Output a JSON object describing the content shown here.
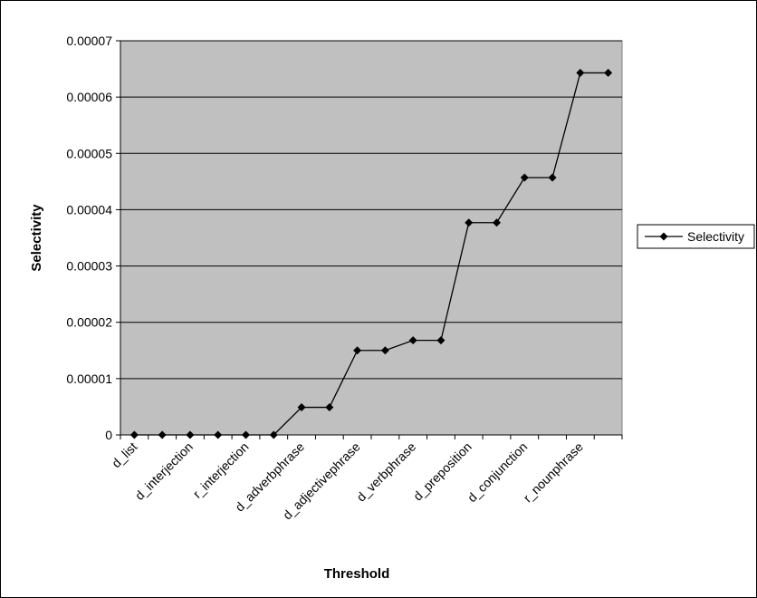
{
  "chart_data": {
    "type": "line",
    "title": "",
    "xlabel": "Threshold",
    "ylabel": "Selectivity",
    "ylim": [
      0,
      7e-05
    ],
    "grid": true,
    "legend_placement": "right",
    "yticks": [
      "0",
      "0.00001",
      "0.00002",
      "0.00003",
      "0.00004",
      "0.00005",
      "0.00006",
      "0.00007"
    ],
    "categories": [
      "d_list",
      "",
      "d_interjection",
      "",
      "r_interjection",
      "",
      "d_adverbphrase",
      "",
      "d_adjectivephrase",
      "",
      "d_verbphrase",
      "",
      "d_preposition",
      "",
      "d_conjunction",
      "",
      "r_nounphrase",
      ""
    ],
    "series": [
      {
        "name": "Selectivity",
        "values": [
          0,
          0,
          0,
          0,
          0,
          0,
          4.9e-06,
          4.9e-06,
          1.5e-05,
          1.5e-05,
          1.68e-05,
          1.68e-05,
          3.77e-05,
          3.77e-05,
          4.57e-05,
          4.57e-05,
          6.43e-05,
          6.43e-05
        ]
      }
    ],
    "colors": {
      "plot_background": "#c0c0c0",
      "gridline": "#000000",
      "series_line": "#000000"
    }
  }
}
